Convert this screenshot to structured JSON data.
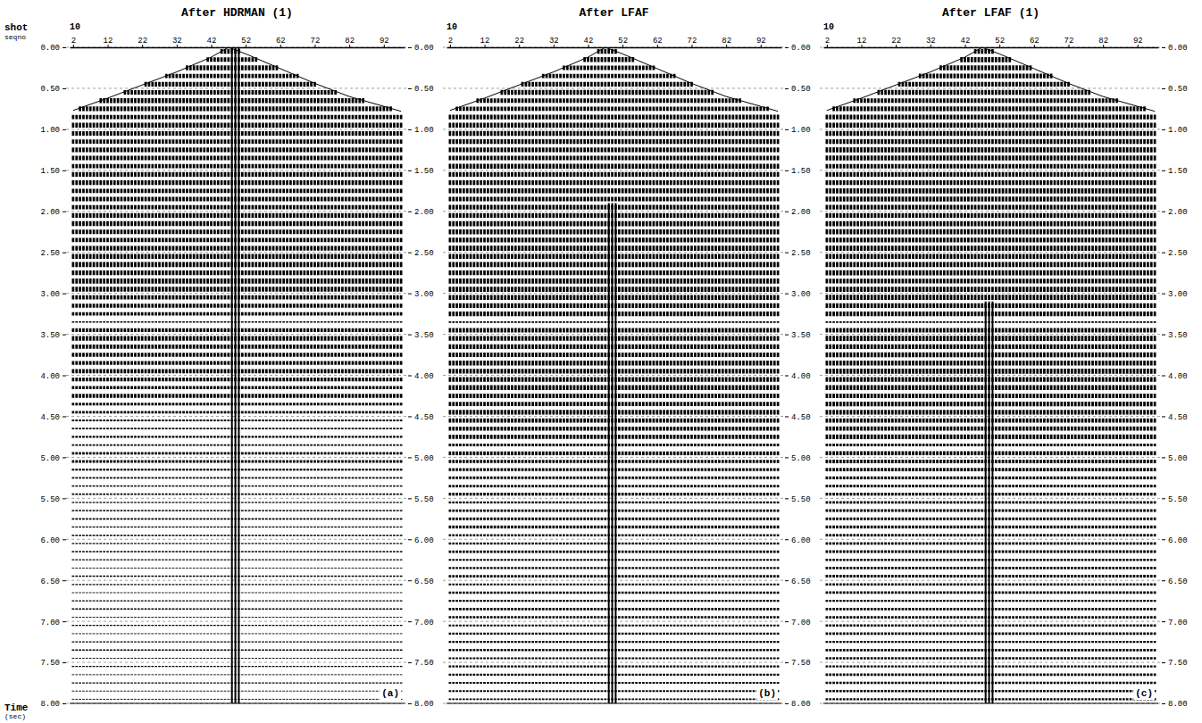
{
  "chart_data": [
    {
      "type": "seismic",
      "title": "After HDRMAN (1)",
      "panel_label": "(a)",
      "shot": 10,
      "xlabel": [
        "shot",
        "seqno"
      ],
      "ylabel": [
        "Time",
        "(sec)"
      ],
      "xlim": [
        1,
        98
      ],
      "xticks": [
        2,
        12,
        22,
        32,
        42,
        52,
        62,
        72,
        82,
        92
      ],
      "ylim": [
        0,
        8
      ],
      "yticks": [
        {
          "value": 0,
          "label": "0.00"
        },
        {
          "value": 0.5,
          "label": "0.50"
        },
        {
          "value": 1,
          "label": "1.00"
        },
        {
          "value": 1.5,
          "label": "1.50"
        },
        {
          "value": 2,
          "label": "2.00"
        },
        {
          "value": 2.5,
          "label": "2.50"
        },
        {
          "value": 3,
          "label": "3.00"
        },
        {
          "value": 3.5,
          "label": "3.50"
        },
        {
          "value": 4,
          "label": "4.00"
        },
        {
          "value": 4.5,
          "label": "4.50"
        },
        {
          "value": 5,
          "label": "5.00"
        },
        {
          "value": 5.5,
          "label": "5.50"
        },
        {
          "value": 6,
          "label": "6.00"
        },
        {
          "value": 6.5,
          "label": "6.50"
        },
        {
          "value": 7,
          "label": "7.00"
        },
        {
          "value": 7.5,
          "label": "7.50"
        },
        {
          "value": 8,
          "label": "8.00"
        }
      ],
      "grid": true,
      "color": "#000000",
      "first_break": {
        "traces": [
          2,
          12,
          22,
          32,
          42,
          47,
          52,
          62,
          72,
          82,
          92,
          97
        ],
        "times": [
          0.77,
          0.62,
          0.46,
          0.3,
          0.12,
          0.0,
          0.08,
          0.26,
          0.44,
          0.6,
          0.72,
          0.78
        ]
      },
      "noise": {
        "traces": [
          48,
          50
        ],
        "times": [
          0.0,
          8.0
        ]
      },
      "events": {
        "times": [
          0.05,
          0.15,
          0.25,
          0.35,
          0.45,
          0.55,
          0.65,
          0.75,
          0.85,
          0.95,
          1.05,
          1.15,
          1.25,
          1.35,
          1.45,
          1.55,
          1.65,
          1.75,
          1.85,
          1.95,
          2.05,
          2.15,
          2.25,
          2.35,
          2.45,
          2.55,
          2.65,
          2.75,
          2.85,
          2.95,
          3.05,
          3.15,
          3.25,
          3.35,
          3.45,
          3.55,
          3.65,
          3.75,
          3.85,
          3.95,
          4.05,
          4.15,
          4.25,
          4.35,
          4.45,
          4.55,
          4.65,
          4.75,
          4.85,
          4.95,
          5.05,
          5.15,
          5.25,
          5.35,
          5.45,
          5.55,
          5.65,
          5.75,
          5.85,
          5.95,
          6.05,
          6.15,
          6.25,
          6.35,
          6.45,
          6.55,
          6.65,
          6.75,
          6.85,
          6.95,
          7.05,
          7.15,
          7.25,
          7.35,
          7.45,
          7.55,
          7.65,
          7.75,
          7.85,
          7.95
        ],
        "amplitudes": [
          0.9,
          0.85,
          0.9,
          0.8,
          0.9,
          0.85,
          0.9,
          0.85,
          0.8,
          0.9,
          0.85,
          0.8,
          0.9,
          0.85,
          0.8,
          0.85,
          0.9,
          0.8,
          0.85,
          0.8,
          0.85,
          0.9,
          0.85,
          0.8,
          0.9,
          0.9,
          0.95,
          0.9,
          0.95,
          0.9,
          0.8,
          0.75,
          0.6,
          0.25,
          0.7,
          0.85,
          0.8,
          0.75,
          0.7,
          0.8,
          0.7,
          0.6,
          0.75,
          0.5,
          0.45,
          0.35,
          0.3,
          0.4,
          0.3,
          0.45,
          0.5,
          0.4,
          0.3,
          0.25,
          0.3,
          0.2,
          0.25,
          0.3,
          0.2,
          0.25,
          0.2,
          0.25,
          0.2,
          0.15,
          0.25,
          0.2,
          0.15,
          0.2,
          0.25,
          0.15,
          0.2,
          0.15,
          0.2,
          0.25,
          0.15,
          0.2,
          0.15,
          0.2,
          0.15,
          0.15
        ]
      }
    },
    {
      "type": "seismic",
      "title": "After LFAF",
      "panel_label": "(b)",
      "shot": 10,
      "xlim": [
        1,
        98
      ],
      "xticks": [
        2,
        12,
        22,
        32,
        42,
        52,
        62,
        72,
        82,
        92
      ],
      "ylim": [
        0,
        8
      ],
      "yticks": [
        {
          "value": 0,
          "label": "0.00"
        },
        {
          "value": 0.5,
          "label": "0.50"
        },
        {
          "value": 1,
          "label": "1.00"
        },
        {
          "value": 1.5,
          "label": "1.50"
        },
        {
          "value": 2,
          "label": "2.00"
        },
        {
          "value": 2.5,
          "label": "2.50"
        },
        {
          "value": 3,
          "label": "3.00"
        },
        {
          "value": 3.5,
          "label": "3.50"
        },
        {
          "value": 4,
          "label": "4.00"
        },
        {
          "value": 4.5,
          "label": "4.50"
        },
        {
          "value": 5,
          "label": "5.00"
        },
        {
          "value": 5.5,
          "label": "5.50"
        },
        {
          "value": 6,
          "label": "6.00"
        },
        {
          "value": 6.5,
          "label": "6.50"
        },
        {
          "value": 7,
          "label": "7.00"
        },
        {
          "value": 7.5,
          "label": "7.50"
        },
        {
          "value": 8,
          "label": "8.00"
        }
      ],
      "grid": true,
      "color": "#000000",
      "first_break": {
        "traces": [
          2,
          12,
          22,
          32,
          42,
          47,
          52,
          62,
          72,
          82,
          92,
          97
        ],
        "times": [
          0.77,
          0.62,
          0.46,
          0.3,
          0.12,
          0.0,
          0.08,
          0.26,
          0.44,
          0.6,
          0.72,
          0.78
        ]
      },
      "noise": {
        "traces": [
          48,
          50
        ],
        "times": [
          1.9,
          8.0
        ]
      },
      "events": {
        "times": [
          0.05,
          0.15,
          0.25,
          0.35,
          0.45,
          0.55,
          0.65,
          0.75,
          0.85,
          0.95,
          1.05,
          1.15,
          1.25,
          1.35,
          1.45,
          1.55,
          1.65,
          1.75,
          1.85,
          1.95,
          2.05,
          2.15,
          2.25,
          2.35,
          2.45,
          2.55,
          2.65,
          2.75,
          2.85,
          2.95,
          3.05,
          3.15,
          3.25,
          3.35,
          3.45,
          3.55,
          3.65,
          3.75,
          3.85,
          3.95,
          4.05,
          4.15,
          4.25,
          4.35,
          4.45,
          4.55,
          4.65,
          4.75,
          4.85,
          4.95,
          5.05,
          5.15,
          5.25,
          5.35,
          5.45,
          5.55,
          5.65,
          5.75,
          5.85,
          5.95,
          6.05,
          6.15,
          6.25,
          6.35,
          6.45,
          6.55,
          6.65,
          6.75,
          6.85,
          6.95,
          7.05,
          7.15,
          7.25,
          7.35,
          7.45,
          7.55,
          7.65,
          7.75,
          7.85,
          7.95
        ],
        "amplitudes": [
          0.85,
          0.9,
          0.85,
          0.8,
          0.85,
          0.9,
          0.85,
          0.8,
          0.85,
          0.9,
          0.9,
          0.85,
          0.9,
          0.85,
          0.9,
          0.85,
          0.9,
          0.9,
          0.85,
          0.9,
          0.9,
          0.95,
          0.9,
          0.9,
          0.95,
          0.9,
          0.95,
          0.9,
          0.95,
          0.95,
          0.9,
          0.9,
          0.85,
          0.3,
          0.85,
          0.9,
          0.9,
          0.85,
          0.9,
          0.9,
          0.85,
          0.9,
          0.85,
          0.8,
          0.85,
          0.8,
          0.75,
          0.8,
          0.5,
          0.7,
          0.6,
          0.55,
          0.5,
          0.45,
          0.55,
          0.4,
          0.45,
          0.5,
          0.55,
          0.4,
          0.4,
          0.45,
          0.35,
          0.4,
          0.45,
          0.35,
          0.4,
          0.35,
          0.45,
          0.4,
          0.35,
          0.4,
          0.35,
          0.4,
          0.35,
          0.35,
          0.4,
          0.35,
          0.35,
          0.3
        ]
      }
    },
    {
      "type": "seismic",
      "title": "After LFAF (1)",
      "panel_label": "(c)",
      "shot": 10,
      "xlim": [
        1,
        98
      ],
      "xticks": [
        2,
        12,
        22,
        32,
        42,
        52,
        62,
        72,
        82,
        92
      ],
      "ylim": [
        0,
        8
      ],
      "yticks": [
        {
          "value": 0,
          "label": "0.00"
        },
        {
          "value": 0.5,
          "label": "0.50"
        },
        {
          "value": 1,
          "label": "1.00"
        },
        {
          "value": 1.5,
          "label": "1.50"
        },
        {
          "value": 2,
          "label": "2.00"
        },
        {
          "value": 2.5,
          "label": "2.50"
        },
        {
          "value": 3,
          "label": "3.00"
        },
        {
          "value": 3.5,
          "label": "3.50"
        },
        {
          "value": 4,
          "label": "4.00"
        },
        {
          "value": 4.5,
          "label": "4.50"
        },
        {
          "value": 5,
          "label": "5.00"
        },
        {
          "value": 5.5,
          "label": "5.50"
        },
        {
          "value": 6,
          "label": "6.00"
        },
        {
          "value": 6.5,
          "label": "6.50"
        },
        {
          "value": 7,
          "label": "7.00"
        },
        {
          "value": 7.5,
          "label": "7.50"
        },
        {
          "value": 8,
          "label": "8.00"
        }
      ],
      "grid": true,
      "color": "#000000",
      "first_break": {
        "traces": [
          2,
          12,
          22,
          32,
          42,
          47,
          52,
          62,
          72,
          82,
          92,
          97
        ],
        "times": [
          0.77,
          0.62,
          0.46,
          0.3,
          0.12,
          0.0,
          0.08,
          0.26,
          0.44,
          0.6,
          0.72,
          0.78
        ]
      },
      "noise": {
        "traces": [
          48,
          50
        ],
        "times": [
          3.1,
          8.0
        ]
      },
      "events": {
        "times": [
          0.05,
          0.15,
          0.25,
          0.35,
          0.45,
          0.55,
          0.65,
          0.75,
          0.85,
          0.95,
          1.05,
          1.15,
          1.25,
          1.35,
          1.45,
          1.55,
          1.65,
          1.75,
          1.85,
          1.95,
          2.05,
          2.15,
          2.25,
          2.35,
          2.45,
          2.55,
          2.65,
          2.75,
          2.85,
          2.95,
          3.05,
          3.15,
          3.25,
          3.35,
          3.45,
          3.55,
          3.65,
          3.75,
          3.85,
          3.95,
          4.05,
          4.15,
          4.25,
          4.35,
          4.45,
          4.55,
          4.65,
          4.75,
          4.85,
          4.95,
          5.05,
          5.15,
          5.25,
          5.35,
          5.45,
          5.55,
          5.65,
          5.75,
          5.85,
          5.95,
          6.05,
          6.15,
          6.25,
          6.35,
          6.45,
          6.55,
          6.65,
          6.75,
          6.85,
          6.95,
          7.05,
          7.15,
          7.25,
          7.35,
          7.45,
          7.55,
          7.65,
          7.75,
          7.85,
          7.95
        ],
        "amplitudes": [
          0.9,
          0.95,
          0.9,
          0.85,
          0.9,
          0.9,
          0.85,
          0.9,
          0.9,
          0.9,
          0.9,
          0.9,
          0.95,
          0.9,
          0.85,
          0.9,
          0.9,
          0.95,
          0.9,
          0.9,
          0.9,
          0.95,
          0.95,
          0.9,
          0.95,
          0.9,
          0.95,
          0.95,
          0.9,
          0.95,
          0.95,
          0.9,
          0.85,
          0.3,
          0.85,
          0.95,
          0.9,
          0.9,
          0.9,
          0.95,
          0.9,
          0.9,
          0.85,
          0.85,
          0.85,
          0.8,
          0.8,
          0.85,
          0.5,
          0.75,
          0.65,
          0.6,
          0.55,
          0.5,
          0.55,
          0.45,
          0.5,
          0.5,
          0.55,
          0.45,
          0.45,
          0.5,
          0.4,
          0.45,
          0.5,
          0.4,
          0.45,
          0.4,
          0.45,
          0.45,
          0.4,
          0.45,
          0.4,
          0.45,
          0.4,
          0.4,
          0.45,
          0.4,
          0.4,
          0.35
        ]
      }
    }
  ]
}
